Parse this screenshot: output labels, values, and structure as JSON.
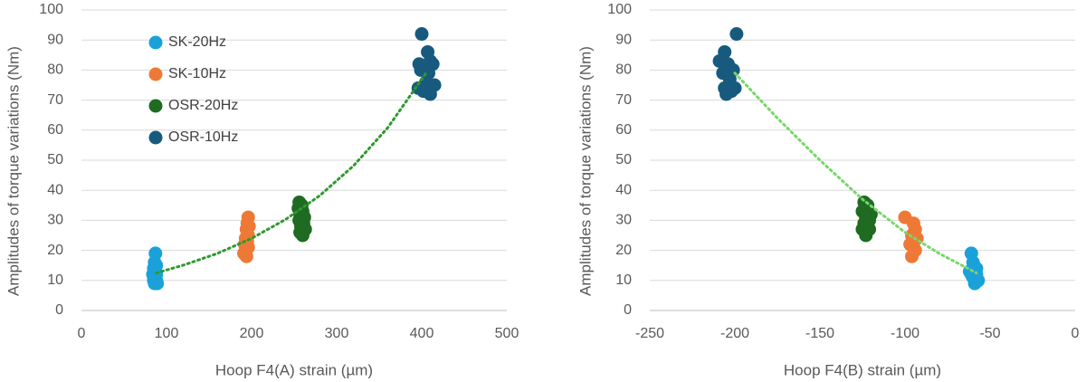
{
  "chart_data": [
    {
      "type": "scatter",
      "x_label": "Hoop F4(A) strain (µm)",
      "y_label": "Amplitudes of torque variations (Nm)",
      "xlim": [
        0,
        500
      ],
      "xticks": [
        0,
        100,
        200,
        300,
        400,
        500
      ],
      "ylim": [
        0,
        100
      ],
      "yticks": [
        0,
        10,
        20,
        30,
        40,
        50,
        60,
        70,
        80,
        90,
        100
      ],
      "grid": true,
      "legend": "upper-left",
      "series": [
        {
          "name": "SK-20Hz",
          "color": "#1ba1d9",
          "x": [
            87,
            86,
            88,
            85,
            87,
            84,
            88,
            86,
            85,
            88,
            86,
            89
          ],
          "values": [
            19,
            16,
            15,
            14,
            13,
            12,
            12,
            11,
            10,
            10,
            9,
            9
          ]
        },
        {
          "name": "SK-10Hz",
          "color": "#ee7936",
          "x": [
            196,
            195,
            197,
            194,
            196,
            193,
            195,
            192,
            196,
            193,
            191,
            194
          ],
          "values": [
            31,
            29,
            28,
            27,
            25,
            24,
            23,
            22,
            21,
            20,
            19,
            18
          ]
        },
        {
          "name": "OSR-20Hz",
          "color": "#1e6b21",
          "x": [
            256,
            259,
            255,
            260,
            257,
            262,
            256,
            261,
            258,
            263,
            257,
            260
          ],
          "values": [
            36,
            35,
            34,
            33,
            32,
            31,
            30,
            29,
            28,
            27,
            26,
            25
          ]
        },
        {
          "name": "OSR-10Hz",
          "color": "#175a7e",
          "x": [
            400,
            407,
            410,
            397,
            404,
            413,
            399,
            408,
            405,
            396,
            415,
            402,
            410,
            406
          ],
          "values": [
            92,
            86,
            83,
            82,
            81,
            82,
            80,
            79,
            76,
            74,
            75,
            73,
            72,
            74
          ]
        }
      ],
      "trendline": {
        "color": "#2e9a2e",
        "x": [
          88,
          120,
          160,
          200,
          240,
          280,
          320,
          360,
          405
        ],
        "values": [
          12.5,
          15.1,
          19.0,
          24.0,
          30.3,
          38.2,
          48.2,
          60.8,
          79
        ]
      }
    },
    {
      "type": "scatter",
      "x_label": "Hoop F4(B) strain (µm)",
      "y_label": "Amplitudes of torque variations (Nm)",
      "xlim": [
        -250,
        0
      ],
      "xticks": [
        -250,
        -200,
        -150,
        -100,
        -50,
        0
      ],
      "ylim": [
        0,
        100
      ],
      "yticks": [
        0,
        10,
        20,
        30,
        40,
        50,
        60,
        70,
        80,
        90,
        100
      ],
      "grid": true,
      "series": [
        {
          "color": "#1ba1d9",
          "x": [
            -61,
            -60,
            -59,
            -62,
            -58,
            -60,
            -57,
            -59,
            -61,
            -58
          ],
          "values": [
            19,
            16,
            14,
            13,
            12,
            11,
            10,
            9,
            12,
            14
          ]
        },
        {
          "color": "#ee7936",
          "x": [
            -100,
            -95,
            -94,
            -96,
            -93,
            -97,
            -95,
            -94,
            -96
          ],
          "values": [
            31,
            29,
            27,
            25,
            24,
            22,
            21,
            20,
            18
          ]
        },
        {
          "color": "#1e6b21",
          "x": [
            -124,
            -122,
            -125,
            -120,
            -123,
            -121,
            -124,
            -122,
            -125,
            -121,
            -123
          ],
          "values": [
            36,
            35,
            33,
            32,
            31,
            30,
            29,
            28,
            27,
            27,
            25
          ]
        },
        {
          "color": "#175a7e",
          "x": [
            -199,
            -206,
            -209,
            -204,
            -201,
            -207,
            -203,
            -206,
            -200,
            -202,
            -205
          ],
          "values": [
            92,
            86,
            83,
            82,
            80,
            79,
            77,
            74,
            74,
            73,
            72
          ]
        }
      ],
      "trendline": {
        "color": "#79d66b",
        "x": [
          -200,
          -175,
          -150,
          -125,
          -100,
          -80,
          -58
        ],
        "values": [
          79,
          64,
          50,
          37,
          26,
          19,
          12.5
        ]
      }
    }
  ]
}
